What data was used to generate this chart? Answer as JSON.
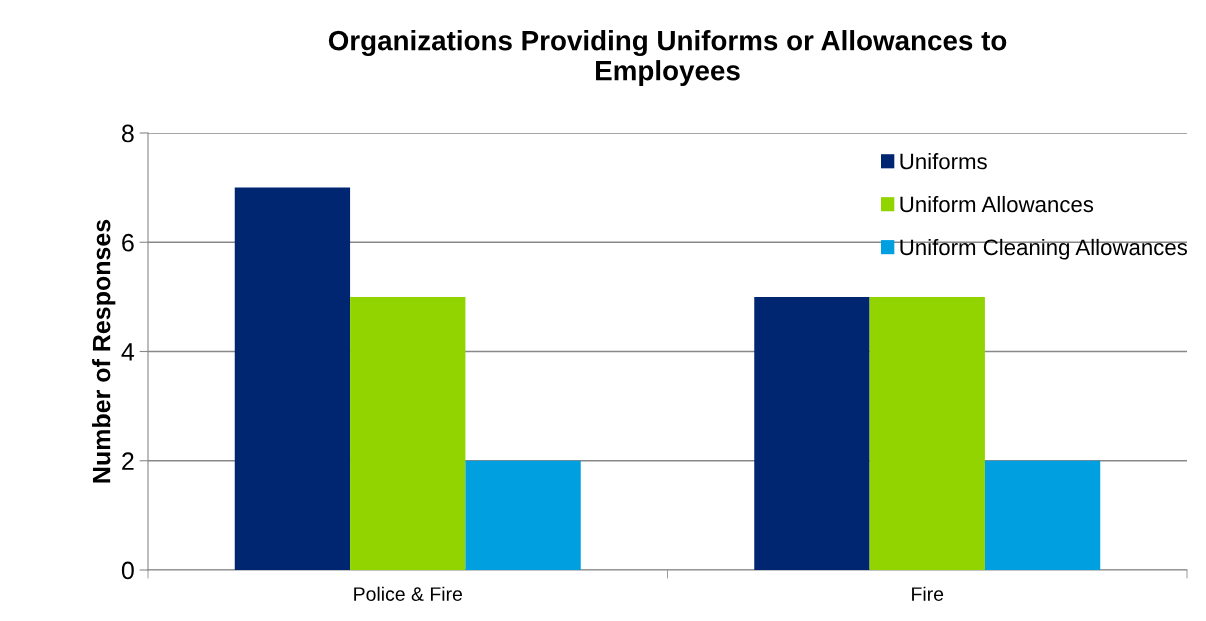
{
  "chart_data": {
    "type": "bar",
    "title": "Organizations Providing Uniforms or Allowances to\nEmployees",
    "ylabel": "Number of Responses",
    "categories": [
      "Police & Fire",
      "Fire"
    ],
    "series": [
      {
        "name": "Uniforms",
        "color": "#002672",
        "values": [
          7,
          5
        ]
      },
      {
        "name": "Uniform Allowances",
        "color": "#92d400",
        "values": [
          5,
          5
        ]
      },
      {
        "name": "Uniform Cleaning Allowances",
        "color": "#00a0e0",
        "values": [
          2,
          2
        ]
      }
    ],
    "ylim": [
      0,
      8
    ],
    "yticks": [
      0,
      2,
      4,
      6,
      8
    ],
    "grid": "y",
    "legend": "top right"
  }
}
